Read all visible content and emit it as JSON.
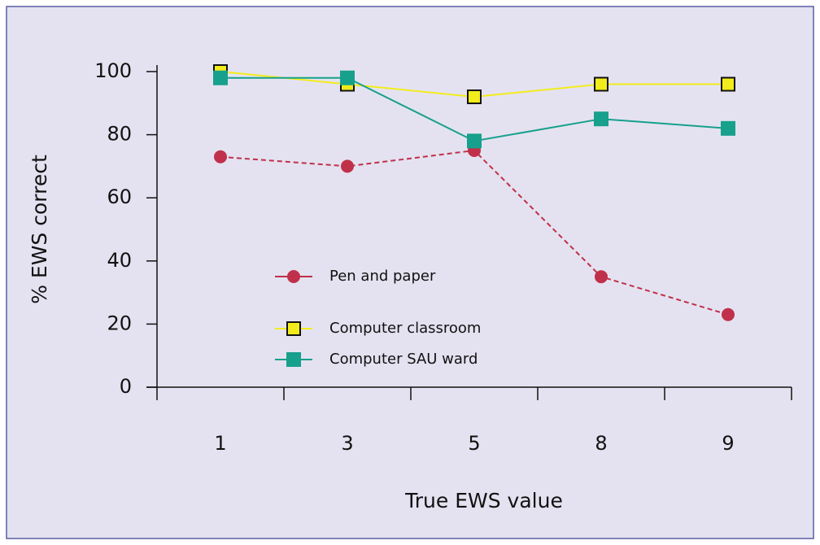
{
  "chart_data": {
    "type": "line",
    "xlabel": "True EWS value",
    "ylabel": "% EWS correct",
    "categories": [
      "1",
      "3",
      "5",
      "8",
      "9"
    ],
    "series": [
      {
        "name": "Pen and paper",
        "color": "#c0304a",
        "dashed": true,
        "marker": "circle",
        "values": [
          73,
          70,
          75,
          35,
          23
        ]
      },
      {
        "name": "Computer classroom",
        "color": "#f2ec1c",
        "dashed": false,
        "marker": "square-outlined",
        "values": [
          100,
          96,
          92,
          96,
          96
        ]
      },
      {
        "name": "Computer SAU ward",
        "color": "#17a08c",
        "dashed": false,
        "marker": "square",
        "values": [
          98,
          98,
          78,
          85,
          82
        ]
      }
    ],
    "ylim": [
      0,
      100
    ],
    "yticks": [
      0,
      20,
      40,
      60,
      80,
      100
    ],
    "grid": false
  }
}
